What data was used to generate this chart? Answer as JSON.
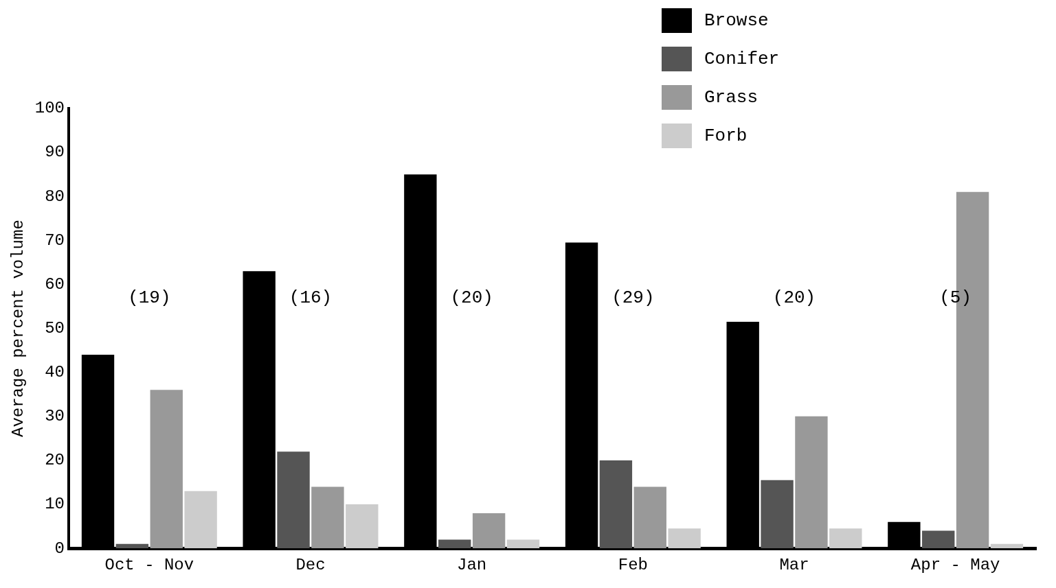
{
  "chart_data": {
    "type": "bar",
    "ylabel": "Average percent volume",
    "categories": [
      "Oct - Nov",
      "Dec",
      "Jan",
      "Feb",
      "Mar",
      "Apr - May"
    ],
    "series": [
      {
        "name": "Browse",
        "color": "#000000",
        "values": [
          44,
          63,
          85,
          69.5,
          51.5,
          6
        ]
      },
      {
        "name": "Conifer",
        "color": "#555555",
        "values": [
          1,
          22,
          2,
          20,
          15.5,
          4
        ]
      },
      {
        "name": "Grass",
        "color": "#999999",
        "values": [
          36,
          14,
          8,
          14,
          30,
          81
        ]
      },
      {
        "name": "Forb",
        "color": "#cccccc",
        "values": [
          13,
          10,
          2,
          4.5,
          4.5,
          1
        ]
      }
    ],
    "ylim": [
      0,
      100
    ],
    "yticks": [
      0,
      10,
      20,
      30,
      40,
      50,
      60,
      70,
      80,
      90,
      100
    ],
    "grid": false,
    "legend": "top right",
    "annotations": [
      "(19)",
      "(16)",
      "(20)",
      "(29)",
      "(20)",
      "(5)"
    ]
  }
}
